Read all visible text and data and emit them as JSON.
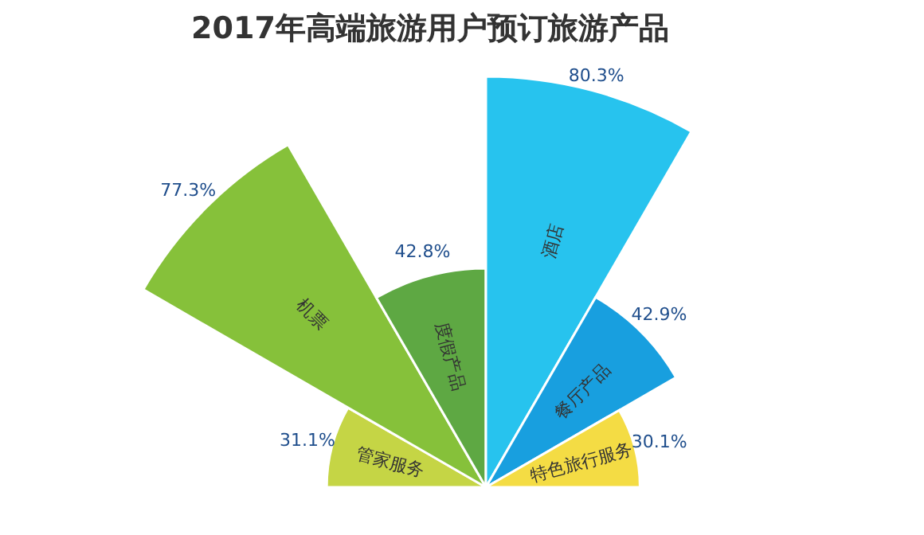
{
  "chart_data": {
    "type": "other",
    "title": "2017年高端旅游用户预订旅游产品",
    "categories": [
      "管家服务",
      "机票",
      "度假产品",
      "酒店",
      "餐厅产品",
      "特色旅行服务"
    ],
    "values": [
      31.1,
      77.3,
      42.8,
      80.3,
      42.9,
      30.1
    ],
    "value_labels": [
      "31.1%",
      "77.3%",
      "42.8%",
      "80.3%",
      "42.9%",
      "30.1%"
    ],
    "colors": [
      "#c5d545",
      "#86c13a",
      "#5ea843",
      "#27c3ee",
      "#189fdf",
      "#f4dc44"
    ]
  }
}
